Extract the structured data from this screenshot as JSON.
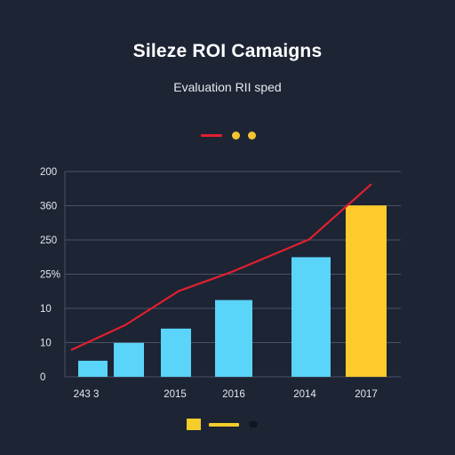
{
  "chart_data": {
    "type": "bar",
    "title": "Sileze ROI Camaigns",
    "subtitle": "Evaluation RII sped",
    "categories": [
      "243 3",
      "2015",
      "2016",
      "",
      "2014",
      "2017"
    ],
    "ytick_labels": [
      "0",
      "10",
      "10",
      "25%",
      "250",
      "360",
      "200"
    ],
    "bars": [
      {
        "value": 9,
        "color": "#5ad4f8"
      },
      {
        "value": 19,
        "color": "#5ad4f8"
      },
      {
        "value": 27,
        "color": "#5ad4f8"
      },
      {
        "value": 43,
        "color": "#5ad4f8"
      },
      {
        "value": 67,
        "color": "#5ad4f8"
      },
      {
        "value": 96,
        "color": "#fdcb2b"
      }
    ],
    "line": {
      "color": "#e0202f",
      "values": [
        15,
        29,
        48,
        59,
        77,
        108
      ]
    },
    "ylim": [
      0,
      115
    ],
    "grid": true,
    "legend_position": "top-center"
  },
  "colors": {
    "background": "#1d2434",
    "bar": "#5ad4f8",
    "bar_highlight": "#fdcb2b",
    "line": "#e0202f",
    "grid": "#4a5264"
  }
}
